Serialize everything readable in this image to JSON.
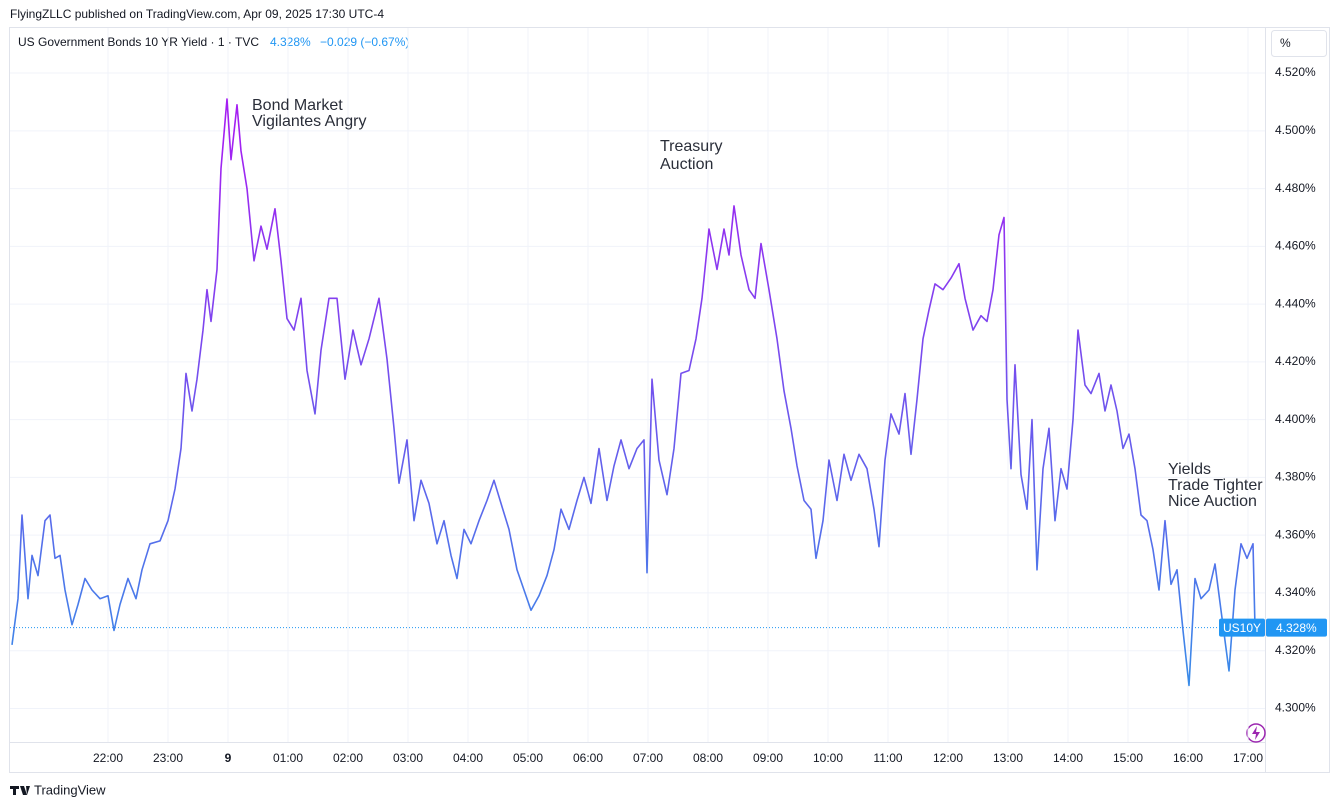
{
  "page": {
    "published": "FlyingZLLC published on TradingView.com, Apr 09, 2025 17:30 UTC-4",
    "logo": "TradingView"
  },
  "chart_data": {
    "type": "line",
    "title": "US Government Bonds 10 YR Yield · 1 · TVC",
    "last_value": 4.328,
    "last_value_label": "4.328%",
    "change_label": "−0.029 (−0.67%)",
    "symbol_tag": "US10Y",
    "unit_button": "%",
    "line_colors": [
      "#3490e8",
      "#a41ff2"
    ],
    "accent_color": "#2196f3",
    "grid": true,
    "annotations": [
      {
        "lines": [
          "Bond Market",
          "Vigilantes Angry"
        ]
      },
      {
        "lines": [
          "Treasury",
          "Auction"
        ]
      },
      {
        "lines": [
          "Yields",
          "Trade Tighter",
          "Nice Auction"
        ]
      }
    ],
    "xlim": [
      "20:22",
      "17:17"
    ],
    "xticks": [
      "22:00",
      "23:00",
      {
        "value": "00:00",
        "label": "9"
      },
      "01:00",
      "02:00",
      "03:00",
      "04:00",
      "05:00",
      "06:00",
      "07:00",
      "08:00",
      "09:00",
      "10:00",
      "11:00",
      "12:00",
      "13:00",
      "14:00",
      "15:00",
      "16:00",
      "17:00"
    ],
    "ylim": [
      4.278,
      4.5356
    ],
    "yticks": [
      {
        "value": 4.3,
        "label": "4.300%"
      },
      {
        "value": 4.32,
        "label": "4.320%"
      },
      {
        "value": 4.34,
        "label": "4.340%"
      },
      {
        "value": 4.36,
        "label": "4.360%"
      },
      {
        "value": 4.38,
        "label": "4.380%"
      },
      {
        "value": 4.4,
        "label": "4.400%"
      },
      {
        "value": 4.42,
        "label": "4.420%"
      },
      {
        "value": 4.44,
        "label": "4.440%"
      },
      {
        "value": 4.46,
        "label": "4.460%"
      },
      {
        "value": 4.48,
        "label": "4.480%"
      },
      {
        "value": 4.5,
        "label": "4.500%"
      },
      {
        "value": 4.52,
        "label": "4.520%"
      }
    ],
    "series": [
      {
        "name": "US10Y",
        "x": [
          "20:24",
          "20:30",
          "20:34",
          "20:40",
          "20:44",
          "20:50",
          "20:57",
          "21:02",
          "21:07",
          "21:12",
          "21:17",
          "21:24",
          "21:30",
          "21:37",
          "21:44",
          "21:52",
          "22:00",
          "22:06",
          "22:12",
          "22:20",
          "22:28",
          "22:34",
          "22:42",
          "22:52",
          "23:00",
          "23:07",
          "23:13",
          "23:18",
          "23:24",
          "23:29",
          "23:35",
          "23:39",
          "23:43",
          "23:49",
          "23:53",
          "23:59",
          "00:03",
          "00:09",
          "00:13",
          "00:19",
          "00:26",
          "00:33",
          "00:39",
          "00:47",
          "00:53",
          "00:59",
          "01:06",
          "01:13",
          "01:19",
          "01:27",
          "01:33",
          "01:41",
          "01:49",
          "01:57",
          "02:05",
          "02:13",
          "02:21",
          "02:31",
          "02:39",
          "02:46",
          "02:51",
          "02:59",
          "03:06",
          "03:13",
          "03:21",
          "03:29",
          "03:36",
          "03:43",
          "03:49",
          "03:56",
          "04:03",
          "04:11",
          "04:19",
          "04:26",
          "04:33",
          "04:41",
          "04:49",
          "04:56",
          "05:03",
          "05:11",
          "05:19",
          "05:26",
          "05:33",
          "05:41",
          "05:49",
          "05:56",
          "06:03",
          "06:11",
          "06:19",
          "06:26",
          "06:33",
          "06:41",
          "06:49",
          "06:56",
          "06:59",
          "07:04",
          "07:11",
          "07:19",
          "07:26",
          "07:33",
          "07:41",
          "07:48",
          "07:54",
          "08:01",
          "08:09",
          "08:16",
          "08:21",
          "08:26",
          "08:33",
          "08:41",
          "08:47",
          "08:53",
          "09:01",
          "09:09",
          "09:16",
          "09:23",
          "09:29",
          "09:36",
          "09:43",
          "09:48",
          "09:55",
          "10:01",
          "10:09",
          "10:16",
          "10:23",
          "10:31",
          "10:39",
          "10:46",
          "10:51",
          "10:57",
          "11:03",
          "11:11",
          "11:17",
          "11:23",
          "11:29",
          "11:35",
          "11:41",
          "11:47",
          "11:55",
          "12:03",
          "12:11",
          "12:17",
          "12:25",
          "12:33",
          "12:39",
          "12:45",
          "12:51",
          "12:56",
          "12:59",
          "13:03",
          "13:07",
          "13:13",
          "13:19",
          "13:24",
          "13:29",
          "13:35",
          "13:41",
          "13:47",
          "13:53",
          "13:59",
          "14:05",
          "14:10",
          "14:17",
          "14:23",
          "14:31",
          "14:37",
          "14:43",
          "14:49",
          "14:55",
          "15:01",
          "15:07",
          "15:13",
          "15:19",
          "15:25",
          "15:31",
          "15:37",
          "15:43",
          "15:49",
          "15:55",
          "16:01",
          "16:07",
          "16:13",
          "16:21",
          "16:27",
          "16:33",
          "16:41",
          "16:47",
          "16:53",
          "16:59",
          "17:05",
          "17:07"
        ],
        "values": [
          4.322,
          4.338,
          4.367,
          4.338,
          4.353,
          4.346,
          4.365,
          4.367,
          4.352,
          4.353,
          4.341,
          4.329,
          4.336,
          4.345,
          4.341,
          4.338,
          4.339,
          4.327,
          4.336,
          4.345,
          4.338,
          4.348,
          4.357,
          4.358,
          4.365,
          4.376,
          4.39,
          4.416,
          4.403,
          4.414,
          4.431,
          4.445,
          4.434,
          4.452,
          4.487,
          4.511,
          4.49,
          4.509,
          4.493,
          4.48,
          4.455,
          4.467,
          4.459,
          4.473,
          4.455,
          4.435,
          4.431,
          4.442,
          4.417,
          4.402,
          4.424,
          4.442,
          4.442,
          4.414,
          4.431,
          4.419,
          4.428,
          4.442,
          4.421,
          4.397,
          4.378,
          4.393,
          4.365,
          4.379,
          4.371,
          4.357,
          4.365,
          4.353,
          4.345,
          4.362,
          4.357,
          4.365,
          4.372,
          4.379,
          4.371,
          4.362,
          4.348,
          4.341,
          4.334,
          4.339,
          4.346,
          4.355,
          4.369,
          4.362,
          4.372,
          4.38,
          4.371,
          4.39,
          4.372,
          4.384,
          4.393,
          4.383,
          4.39,
          4.393,
          4.347,
          4.414,
          4.386,
          4.374,
          4.39,
          4.416,
          4.417,
          4.428,
          4.442,
          4.466,
          4.452,
          4.466,
          4.457,
          4.474,
          4.457,
          4.445,
          4.442,
          4.461,
          4.445,
          4.428,
          4.41,
          4.397,
          4.384,
          4.372,
          4.369,
          4.352,
          4.365,
          4.386,
          4.372,
          4.388,
          4.379,
          4.388,
          4.383,
          4.369,
          4.356,
          4.386,
          4.402,
          4.395,
          4.409,
          4.388,
          4.407,
          4.428,
          4.438,
          4.447,
          4.445,
          4.449,
          4.454,
          4.442,
          4.431,
          4.436,
          4.434,
          4.445,
          4.464,
          4.47,
          4.407,
          4.383,
          4.419,
          4.381,
          4.369,
          4.4,
          4.348,
          4.383,
          4.397,
          4.365,
          4.383,
          4.376,
          4.4,
          4.431,
          4.412,
          4.409,
          4.416,
          4.403,
          4.412,
          4.403,
          4.39,
          4.395,
          4.383,
          4.367,
          4.365,
          4.355,
          4.341,
          4.365,
          4.343,
          4.348,
          4.327,
          4.308,
          4.345,
          4.338,
          4.341,
          4.35,
          4.334,
          4.313,
          4.341,
          4.357,
          4.352,
          4.357,
          4.328
        ]
      }
    ]
  }
}
